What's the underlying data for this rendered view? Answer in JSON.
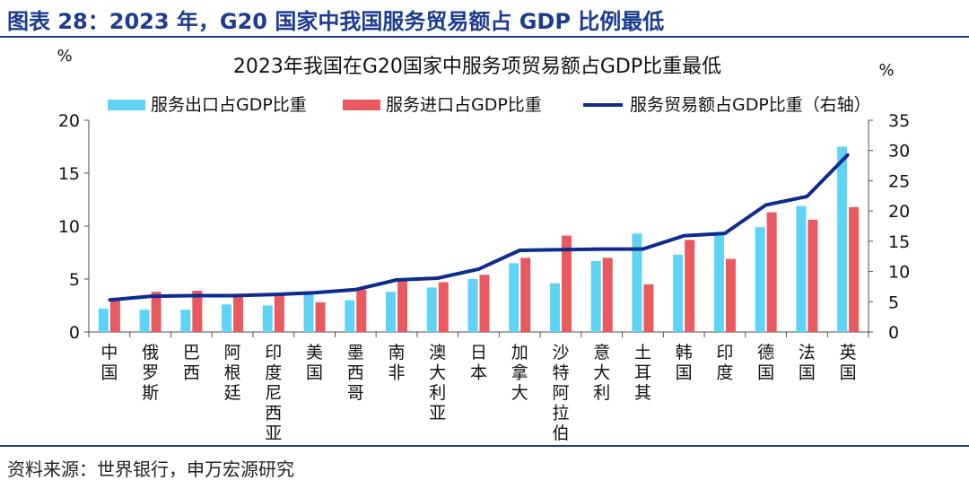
{
  "figure_title": "图表 28：2023 年，G20 国家中我国服务贸易额占 GDP 比例最低",
  "source_note": "资料来源：世界银行，申万宏源研究",
  "colors": {
    "exports": "#5fd3f6",
    "imports": "#e85a5f",
    "line": "#0d2c8c",
    "axis": "#4d4d4d",
    "title_blue": "#1d3c8f"
  },
  "chart_data": {
    "type": "bar",
    "title": "2023年我国在G20国家中服务项贸易额占GDP比重最低",
    "y_left_unit": "%",
    "y_right_unit": "%",
    "ylim_left": [
      0,
      20
    ],
    "ylim_right": [
      0,
      35
    ],
    "yticks_left": [
      0,
      5,
      10,
      15,
      20
    ],
    "yticks_right": [
      0,
      5,
      10,
      15,
      20,
      25,
      30,
      35
    ],
    "grid": false,
    "legend_position": "top",
    "categories": [
      "中国",
      "俄罗斯",
      "巴西",
      "阿根廷",
      "印度尼西亚",
      "美国",
      "墨西哥",
      "南非",
      "澳大利亚",
      "日本",
      "加拿大",
      "沙特阿拉伯",
      "意大利",
      "土耳其",
      "韩国",
      "印度",
      "德国",
      "法国",
      "英国"
    ],
    "series": [
      {
        "name": "服务出口占GDP比重",
        "type": "bar",
        "axis": "left",
        "values": [
          2.2,
          2.1,
          2.1,
          2.6,
          2.5,
          3.7,
          3.0,
          3.8,
          4.2,
          5.0,
          6.5,
          4.6,
          6.7,
          9.3,
          7.3,
          9.3,
          9.9,
          11.9,
          17.5
        ]
      },
      {
        "name": "服务进口占GDP比重",
        "type": "bar",
        "axis": "left",
        "values": [
          3.1,
          3.8,
          3.9,
          3.3,
          3.7,
          2.8,
          4.0,
          4.8,
          4.7,
          5.4,
          7.0,
          9.1,
          7.0,
          4.5,
          8.7,
          6.9,
          11.3,
          10.6,
          11.8
        ]
      },
      {
        "name": "服务贸易额占GDP比重（右轴）",
        "type": "line",
        "axis": "right",
        "values": [
          5.3,
          5.9,
          6.0,
          6.0,
          6.2,
          6.5,
          7.0,
          8.6,
          8.9,
          10.4,
          13.5,
          13.6,
          13.7,
          13.7,
          15.9,
          16.3,
          21.0,
          22.4,
          29.3
        ]
      }
    ]
  }
}
